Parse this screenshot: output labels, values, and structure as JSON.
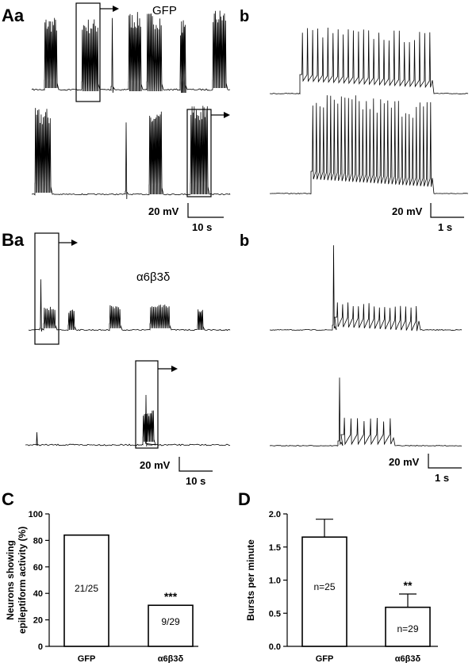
{
  "panels": {
    "A": "Aa",
    "A_b": "b",
    "B": "Ba",
    "B_b": "b",
    "C": "C",
    "D": "D"
  },
  "conditions": {
    "gfp": "GFP",
    "alpha": "α6β3δ"
  },
  "scalebars": {
    "a_left_v": "20 mV",
    "a_left_t": "10 s",
    "a_right_v": "20 mV",
    "a_right_t": "1 s",
    "b_left_v": "20 mV",
    "b_left_t": "10 s",
    "b_right_v": "20 mV",
    "b_right_t": "1 s"
  },
  "chart_data": [
    {
      "id": "C",
      "type": "bar",
      "categories": [
        "GFP",
        "α6β3δ"
      ],
      "values": [
        84,
        31
      ],
      "bar_labels": [
        "21/25",
        "9/29"
      ],
      "significance": [
        "",
        "***"
      ],
      "ylabel": "Neurons showing epileptiform activity (%)",
      "ylim": [
        0,
        100
      ],
      "yticks": [
        "0",
        "20",
        "40",
        "60",
        "80",
        "100"
      ],
      "grid": false
    },
    {
      "id": "D",
      "type": "bar",
      "categories": [
        "GFP",
        "α6β3δ"
      ],
      "values": [
        1.65,
        0.59
      ],
      "errors": [
        0.27,
        0.2
      ],
      "bar_labels": [
        "n=25",
        "n=29"
      ],
      "significance": [
        "",
        "**"
      ],
      "ylabel": "Bursts per minute",
      "ylim": [
        0,
        2.0
      ],
      "yticks": [
        "0.0",
        "0.5",
        "1.0",
        "1.5",
        "2.0"
      ],
      "grid": false
    }
  ]
}
